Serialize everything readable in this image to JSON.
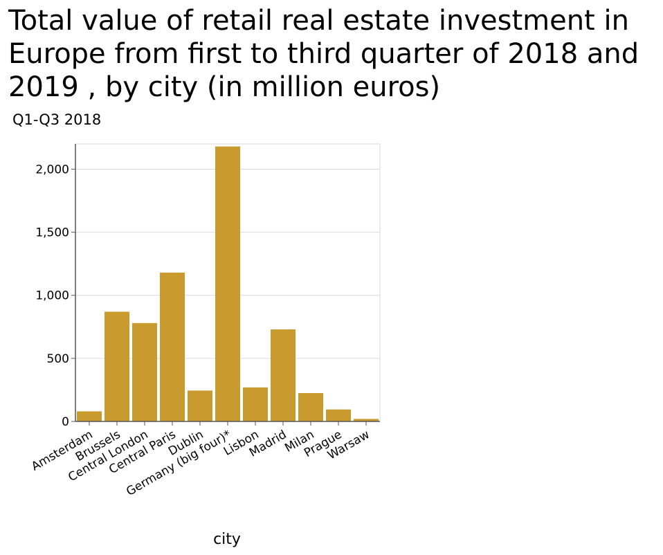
{
  "chart_data": {
    "type": "bar",
    "title": "Total value of retail real estate investment in Europe from first to third quarter of 2018 and 2019 , by city (in million euros)",
    "subtitle": "Q1-Q3 2018",
    "xlabel": "city",
    "ylabel": "",
    "categories": [
      "Amsterdam",
      "Brussels",
      "Central London",
      "Central Paris",
      "Dublin",
      "Germany (big four)*",
      "Lisbon",
      "Madrid",
      "Milan",
      "Prague",
      "Warsaw"
    ],
    "values": [
      80,
      870,
      780,
      1180,
      245,
      2180,
      270,
      730,
      225,
      95,
      20
    ],
    "ylim": [
      0,
      2200
    ],
    "yticks": [
      0,
      500,
      1000,
      1500,
      2000
    ],
    "ytick_labels": [
      "0",
      "500",
      "1,000",
      "1,500",
      "2,000"
    ],
    "grid": true,
    "legend": "none",
    "bar_color": "#c99b2e",
    "grid_color": "#d9d9d9",
    "axis_color": "#555555"
  }
}
